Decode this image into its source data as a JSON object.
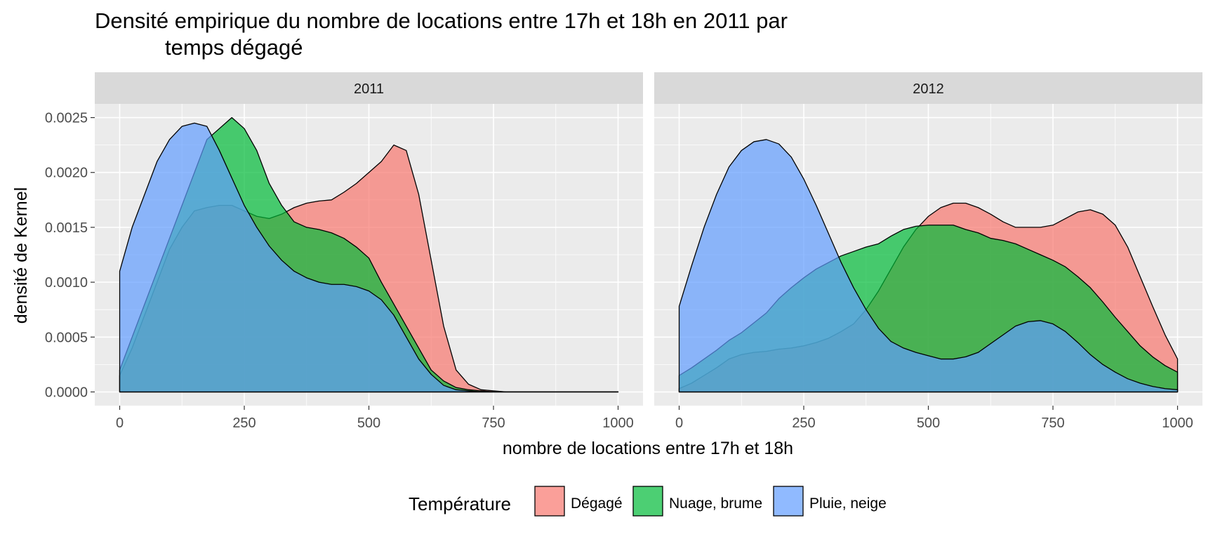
{
  "chart_data": {
    "type": "area",
    "title_line1": "Densité empirique du nombre de locations entre 17h et 18h en 2011 par",
    "title_line2": "temps dégagé",
    "xlabel": "nombre de locations entre 17h et 18h",
    "ylabel": "densité de Kernel",
    "xlim": [
      -50,
      1050
    ],
    "ylim": [
      -0.000125,
      0.002625
    ],
    "x_ticks": [
      0,
      250,
      500,
      750,
      1000
    ],
    "x_tick_labels": [
      "0",
      "250",
      "500",
      "750",
      "1000"
    ],
    "y_ticks": [
      0,
      0.0005,
      0.001,
      0.0015,
      0.002,
      0.0025
    ],
    "y_tick_labels": [
      "0.0000",
      "0.0005",
      "0.0010",
      "0.0015",
      "0.0020",
      "0.0025"
    ],
    "grid": true,
    "legend_title": "Température",
    "legend_position": "bottom",
    "colors": {
      "Dégagé": "#F8766D",
      "Nuage, brume": "#00BA38",
      "Pluie, neige": "#619CFF",
      "panel_bg": "#EBEBEB",
      "strip_bg": "#D9D9D9",
      "grid": "#FFFFFF"
    },
    "panels": [
      {
        "strip": "2011",
        "series": [
          {
            "name": "Dégagé",
            "x": [
              0,
              25,
              50,
              75,
              100,
              125,
              150,
              175,
              200,
              225,
              250,
              275,
              300,
              325,
              350,
              375,
              400,
              425,
              450,
              475,
              500,
              525,
              550,
              575,
              600,
              625,
              650,
              675,
              700,
              725,
              750,
              775,
              800,
              850,
              900,
              1000
            ],
            "y": [
              0.00015,
              0.0004,
              0.0007,
              0.001,
              0.0013,
              0.0015,
              0.00165,
              0.00168,
              0.0017,
              0.0017,
              0.00165,
              0.0016,
              0.00158,
              0.00162,
              0.00168,
              0.00172,
              0.00174,
              0.00175,
              0.00182,
              0.0019,
              0.002,
              0.0021,
              0.00225,
              0.0022,
              0.0018,
              0.0012,
              0.0006,
              0.0002,
              7e-05,
              2e-05,
              1e-05,
              0.0,
              0.0,
              0.0,
              0.0,
              0.0
            ]
          },
          {
            "name": "Nuage, brume",
            "x": [
              0,
              25,
              50,
              75,
              100,
              125,
              150,
              175,
              200,
              225,
              250,
              275,
              300,
              325,
              350,
              375,
              400,
              425,
              450,
              475,
              500,
              525,
              550,
              575,
              600,
              625,
              650,
              675,
              700,
              725,
              750,
              775,
              800,
              850,
              900,
              1000
            ],
            "y": [
              0.0002,
              0.0005,
              0.0008,
              0.0011,
              0.0014,
              0.0017,
              0.002,
              0.0023,
              0.0024,
              0.0025,
              0.0024,
              0.0022,
              0.0019,
              0.0017,
              0.00155,
              0.0015,
              0.00148,
              0.00145,
              0.0014,
              0.00132,
              0.00122,
              0.001,
              0.0008,
              0.0006,
              0.0004,
              0.0002,
              0.0001,
              4e-05,
              2e-05,
              1e-05,
              0.0,
              0.0,
              0.0,
              0.0,
              0.0,
              0.0
            ]
          },
          {
            "name": "Pluie, neige",
            "x": [
              0,
              25,
              50,
              75,
              100,
              125,
              150,
              175,
              200,
              225,
              250,
              275,
              300,
              325,
              350,
              375,
              400,
              425,
              450,
              475,
              500,
              525,
              550,
              575,
              600,
              625,
              650,
              675,
              700,
              725,
              750,
              775,
              800,
              850,
              900,
              1000
            ],
            "y": [
              0.0011,
              0.0015,
              0.0018,
              0.0021,
              0.0023,
              0.00242,
              0.00245,
              0.00242,
              0.0022,
              0.00195,
              0.0017,
              0.0015,
              0.00133,
              0.0012,
              0.0011,
              0.00104,
              0.001,
              0.00098,
              0.00098,
              0.00096,
              0.00092,
              0.00084,
              0.0007,
              0.0005,
              0.0003,
              0.00016,
              6e-05,
              2e-05,
              1e-05,
              0.0,
              0.0,
              0.0,
              0.0,
              0.0,
              0.0,
              0.0
            ]
          }
        ]
      },
      {
        "strip": "2012",
        "series": [
          {
            "name": "Dégagé",
            "x": [
              0,
              25,
              50,
              75,
              100,
              125,
              150,
              175,
              200,
              225,
              250,
              275,
              300,
              325,
              350,
              375,
              400,
              425,
              450,
              475,
              500,
              525,
              550,
              575,
              600,
              625,
              650,
              675,
              700,
              725,
              750,
              775,
              800,
              825,
              850,
              875,
              900,
              925,
              950,
              975,
              1000
            ],
            "y": [
              3e-05,
              8e-05,
              0.00015,
              0.00022,
              0.0003,
              0.00034,
              0.00036,
              0.00037,
              0.00039,
              0.0004,
              0.00042,
              0.00045,
              0.00049,
              0.00055,
              0.00062,
              0.00075,
              0.00092,
              0.00112,
              0.00132,
              0.00148,
              0.0016,
              0.00168,
              0.00172,
              0.00172,
              0.00168,
              0.00162,
              0.00155,
              0.0015,
              0.0015,
              0.0015,
              0.00152,
              0.00158,
              0.00164,
              0.00166,
              0.00162,
              0.00152,
              0.00132,
              0.00105,
              0.00078,
              0.00052,
              0.0003
            ]
          },
          {
            "name": "Nuage, brume",
            "x": [
              0,
              25,
              50,
              75,
              100,
              125,
              150,
              175,
              200,
              225,
              250,
              275,
              300,
              325,
              350,
              375,
              400,
              425,
              450,
              475,
              500,
              525,
              550,
              575,
              600,
              625,
              650,
              675,
              700,
              725,
              750,
              775,
              800,
              825,
              850,
              875,
              900,
              925,
              950,
              975,
              1000
            ],
            "y": [
              0.00015,
              0.00022,
              0.0003,
              0.00038,
              0.00047,
              0.00054,
              0.00063,
              0.00072,
              0.00085,
              0.00095,
              0.00104,
              0.00112,
              0.00118,
              0.00124,
              0.00128,
              0.00132,
              0.00135,
              0.00142,
              0.00148,
              0.00151,
              0.00152,
              0.00152,
              0.00152,
              0.00148,
              0.00145,
              0.0014,
              0.00138,
              0.00135,
              0.0013,
              0.00125,
              0.0012,
              0.00114,
              0.00105,
              0.00095,
              0.00082,
              0.00068,
              0.00055,
              0.00042,
              0.00032,
              0.00024,
              0.00018
            ]
          },
          {
            "name": "Pluie, neige",
            "x": [
              0,
              25,
              50,
              75,
              100,
              125,
              150,
              175,
              200,
              225,
              250,
              275,
              300,
              325,
              350,
              375,
              400,
              425,
              450,
              475,
              500,
              525,
              550,
              575,
              600,
              625,
              650,
              675,
              700,
              725,
              750,
              775,
              800,
              825,
              850,
              875,
              900,
              925,
              950,
              975,
              1000
            ],
            "y": [
              0.00078,
              0.00115,
              0.0015,
              0.0018,
              0.00205,
              0.0022,
              0.00228,
              0.0023,
              0.00226,
              0.00214,
              0.00194,
              0.0017,
              0.00144,
              0.00118,
              0.00095,
              0.00075,
              0.00058,
              0.00046,
              0.0004,
              0.00036,
              0.00033,
              0.0003,
              0.0003,
              0.00032,
              0.00036,
              0.00044,
              0.00052,
              0.0006,
              0.00064,
              0.00065,
              0.00062,
              0.00055,
              0.00045,
              0.00034,
              0.00025,
              0.00018,
              0.00012,
              8e-05,
              5e-05,
              3e-05,
              2e-05
            ]
          }
        ]
      }
    ]
  }
}
